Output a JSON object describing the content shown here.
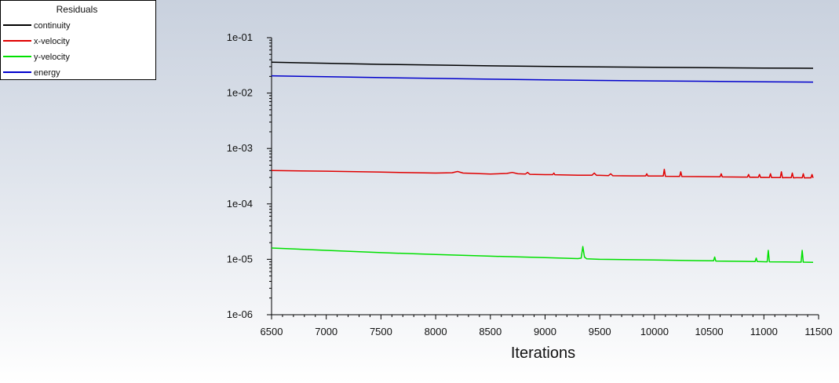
{
  "chart_data": {
    "type": "line",
    "legend_title": "Residuals",
    "legend_position": "top-left",
    "xlabel": "Iterations",
    "ylabel": "",
    "xlim": [
      6500,
      11500
    ],
    "ylim": [
      1e-06,
      0.1
    ],
    "y_scale": "log",
    "grid": false,
    "x_ticks": [
      "6500",
      "7000",
      "7500",
      "8000",
      "8500",
      "9000",
      "9500",
      "10000",
      "10500",
      "11000",
      "11500"
    ],
    "y_ticks": [
      "1e-01",
      "1e-02",
      "1e-03",
      "1e-04",
      "1e-05",
      "1e-06"
    ],
    "series": [
      {
        "name": "continuity",
        "color": "#000000",
        "x": [
          6500,
          7000,
          7500,
          8000,
          8500,
          9000,
          9500,
          10000,
          10500,
          11000,
          11450
        ],
        "y": [
          0.036,
          0.0345,
          0.033,
          0.032,
          0.031,
          0.0303,
          0.0297,
          0.0292,
          0.0287,
          0.0283,
          0.028
        ]
      },
      {
        "name": "x-velocity",
        "color": "#e00000",
        "x": [
          6500,
          7000,
          7500,
          8000,
          8150,
          8200,
          8250,
          8500,
          8650,
          8700,
          8750,
          8820,
          8840,
          8860,
          9000,
          9070,
          9080,
          9090,
          9300,
          9430,
          9450,
          9470,
          9500,
          9580,
          9600,
          9620,
          9800,
          9920,
          9930,
          9940,
          10000,
          10080,
          10090,
          10100,
          10230,
          10240,
          10250,
          10500,
          10600,
          10610,
          10620,
          10800,
          10850,
          10860,
          10870,
          10900,
          10950,
          10960,
          10970,
          11000,
          11050,
          11060,
          11070,
          11100,
          11150,
          11160,
          11170,
          11200,
          11250,
          11260,
          11270,
          11300,
          11350,
          11360,
          11370,
          11400,
          11430,
          11440,
          11450
        ],
        "y": [
          0.0004,
          0.00039,
          0.000375,
          0.00036,
          0.000365,
          0.000385,
          0.00036,
          0.000345,
          0.000355,
          0.00037,
          0.00035,
          0.000345,
          0.00037,
          0.000342,
          0.000338,
          0.000338,
          0.00036,
          0.000336,
          0.00033,
          0.00033,
          0.00036,
          0.000328,
          0.000328,
          0.000325,
          0.00035,
          0.000322,
          0.00032,
          0.00032,
          0.00035,
          0.000318,
          0.000318,
          0.000318,
          0.00042,
          0.000315,
          0.000314,
          0.00038,
          0.000312,
          0.00031,
          0.000309,
          0.00035,
          0.000307,
          0.000305,
          0.000305,
          0.00034,
          0.000302,
          0.000303,
          0.000302,
          0.00034,
          0.0003,
          0.000301,
          0.0003,
          0.00035,
          0.000298,
          0.000299,
          0.000298,
          0.00038,
          0.000296,
          0.000298,
          0.000297,
          0.00036,
          0.000295,
          0.000297,
          0.000296,
          0.00035,
          0.000294,
          0.000296,
          0.000295,
          0.00034,
          0.000294
        ]
      },
      {
        "name": "y-velocity",
        "color": "#00e000",
        "x": [
          6500,
          7000,
          7500,
          8000,
          8500,
          9000,
          9300,
          9330,
          9345,
          9360,
          9380,
          9500,
          10000,
          10500,
          10540,
          10550,
          10560,
          10800,
          10920,
          10930,
          10940,
          11000,
          11030,
          11040,
          11050,
          11200,
          11340,
          11350,
          11360,
          11400,
          11450
        ],
        "y": [
          1.6e-05,
          1.45e-05,
          1.32e-05,
          1.22e-05,
          1.14e-05,
          1.07e-05,
          1.03e-05,
          1.05e-05,
          1.7e-05,
          1.1e-05,
          1.02e-05,
          1e-05,
          9.7e-06,
          9.4e-06,
          9.4e-06,
          1.1e-05,
          9.3e-06,
          9.2e-06,
          9.1e-06,
          1.05e-05,
          9.1e-06,
          9.05e-06,
          9e-06,
          1.45e-05,
          9e-06,
          8.95e-06,
          8.9e-06,
          1.45e-05,
          8.9e-06,
          8.85e-06,
          8.8e-06
        ]
      },
      {
        "name": "energy",
        "color": "#0000cc",
        "x": [
          6500,
          7000,
          7500,
          8000,
          8500,
          9000,
          9500,
          10000,
          10500,
          11000,
          11450
        ],
        "y": [
          0.0205,
          0.0197,
          0.019,
          0.0184,
          0.0178,
          0.0173,
          0.0169,
          0.0166,
          0.0163,
          0.016,
          0.0158
        ]
      }
    ]
  }
}
